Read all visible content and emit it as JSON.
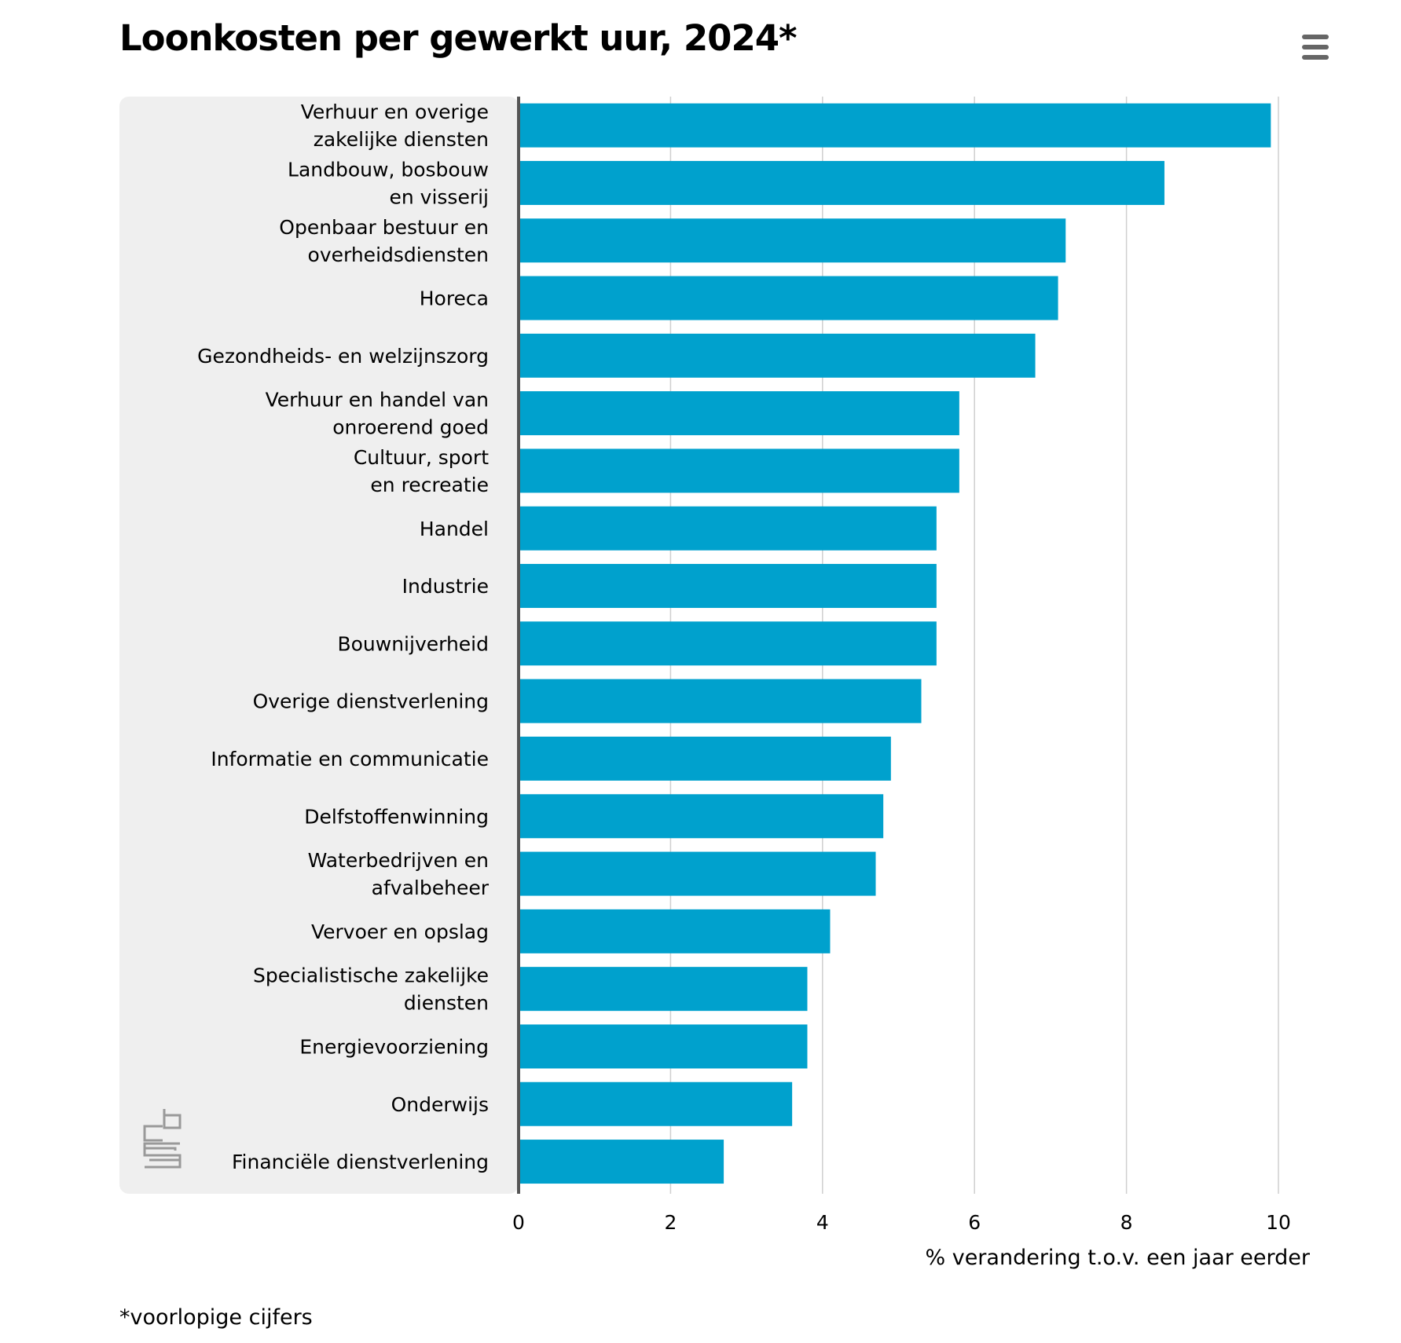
{
  "title": "Loonkosten per gewerkt uur, 2024*",
  "menu": {
    "icon": "hamburger-menu-icon"
  },
  "footnote": "*voorlopige cijfers",
  "logo": {
    "icon": "cbs-logo-icon"
  },
  "colors": {
    "bar": "#00a1cd",
    "label_panel": "#efefef",
    "gridline": "#cfcfcf",
    "axis": "#555555",
    "logo": "#999999"
  },
  "chart_data": {
    "type": "bar",
    "orientation": "horizontal",
    "title": "Loonkosten per gewerkt uur, 2024*",
    "xlabel": "% verandering t.o.v. een jaar eerder",
    "ylabel": "",
    "xlim": [
      0,
      10
    ],
    "xticks": [
      0,
      2,
      4,
      6,
      8,
      10
    ],
    "grid": true,
    "legend": false,
    "categories": [
      [
        "Verhuur en overige",
        "zakelijke diensten"
      ],
      [
        "Landbouw, bosbouw",
        "en visserij"
      ],
      [
        "Openbaar bestuur en",
        "overheidsdiensten"
      ],
      [
        "Horeca"
      ],
      [
        "Gezondheids- en welzijnszorg"
      ],
      [
        "Verhuur en handel van",
        "onroerend goed"
      ],
      [
        "Cultuur, sport",
        "en recreatie"
      ],
      [
        "Handel"
      ],
      [
        "Industrie"
      ],
      [
        "Bouwnijverheid"
      ],
      [
        "Overige dienstverlening"
      ],
      [
        "Informatie en communicatie"
      ],
      [
        "Delfstoffenwinning"
      ],
      [
        "Waterbedrijven en",
        "afvalbeheer"
      ],
      [
        "Vervoer en opslag"
      ],
      [
        "Specialistische zakelijke",
        "diensten"
      ],
      [
        "Energievoorziening"
      ],
      [
        "Onderwijs"
      ],
      [
        "Financiële dienstverlening"
      ]
    ],
    "values": [
      9.9,
      8.5,
      7.2,
      7.1,
      6.8,
      5.8,
      5.8,
      5.5,
      5.5,
      5.5,
      5.3,
      4.9,
      4.8,
      4.7,
      4.1,
      3.8,
      3.8,
      3.6,
      2.7
    ]
  }
}
